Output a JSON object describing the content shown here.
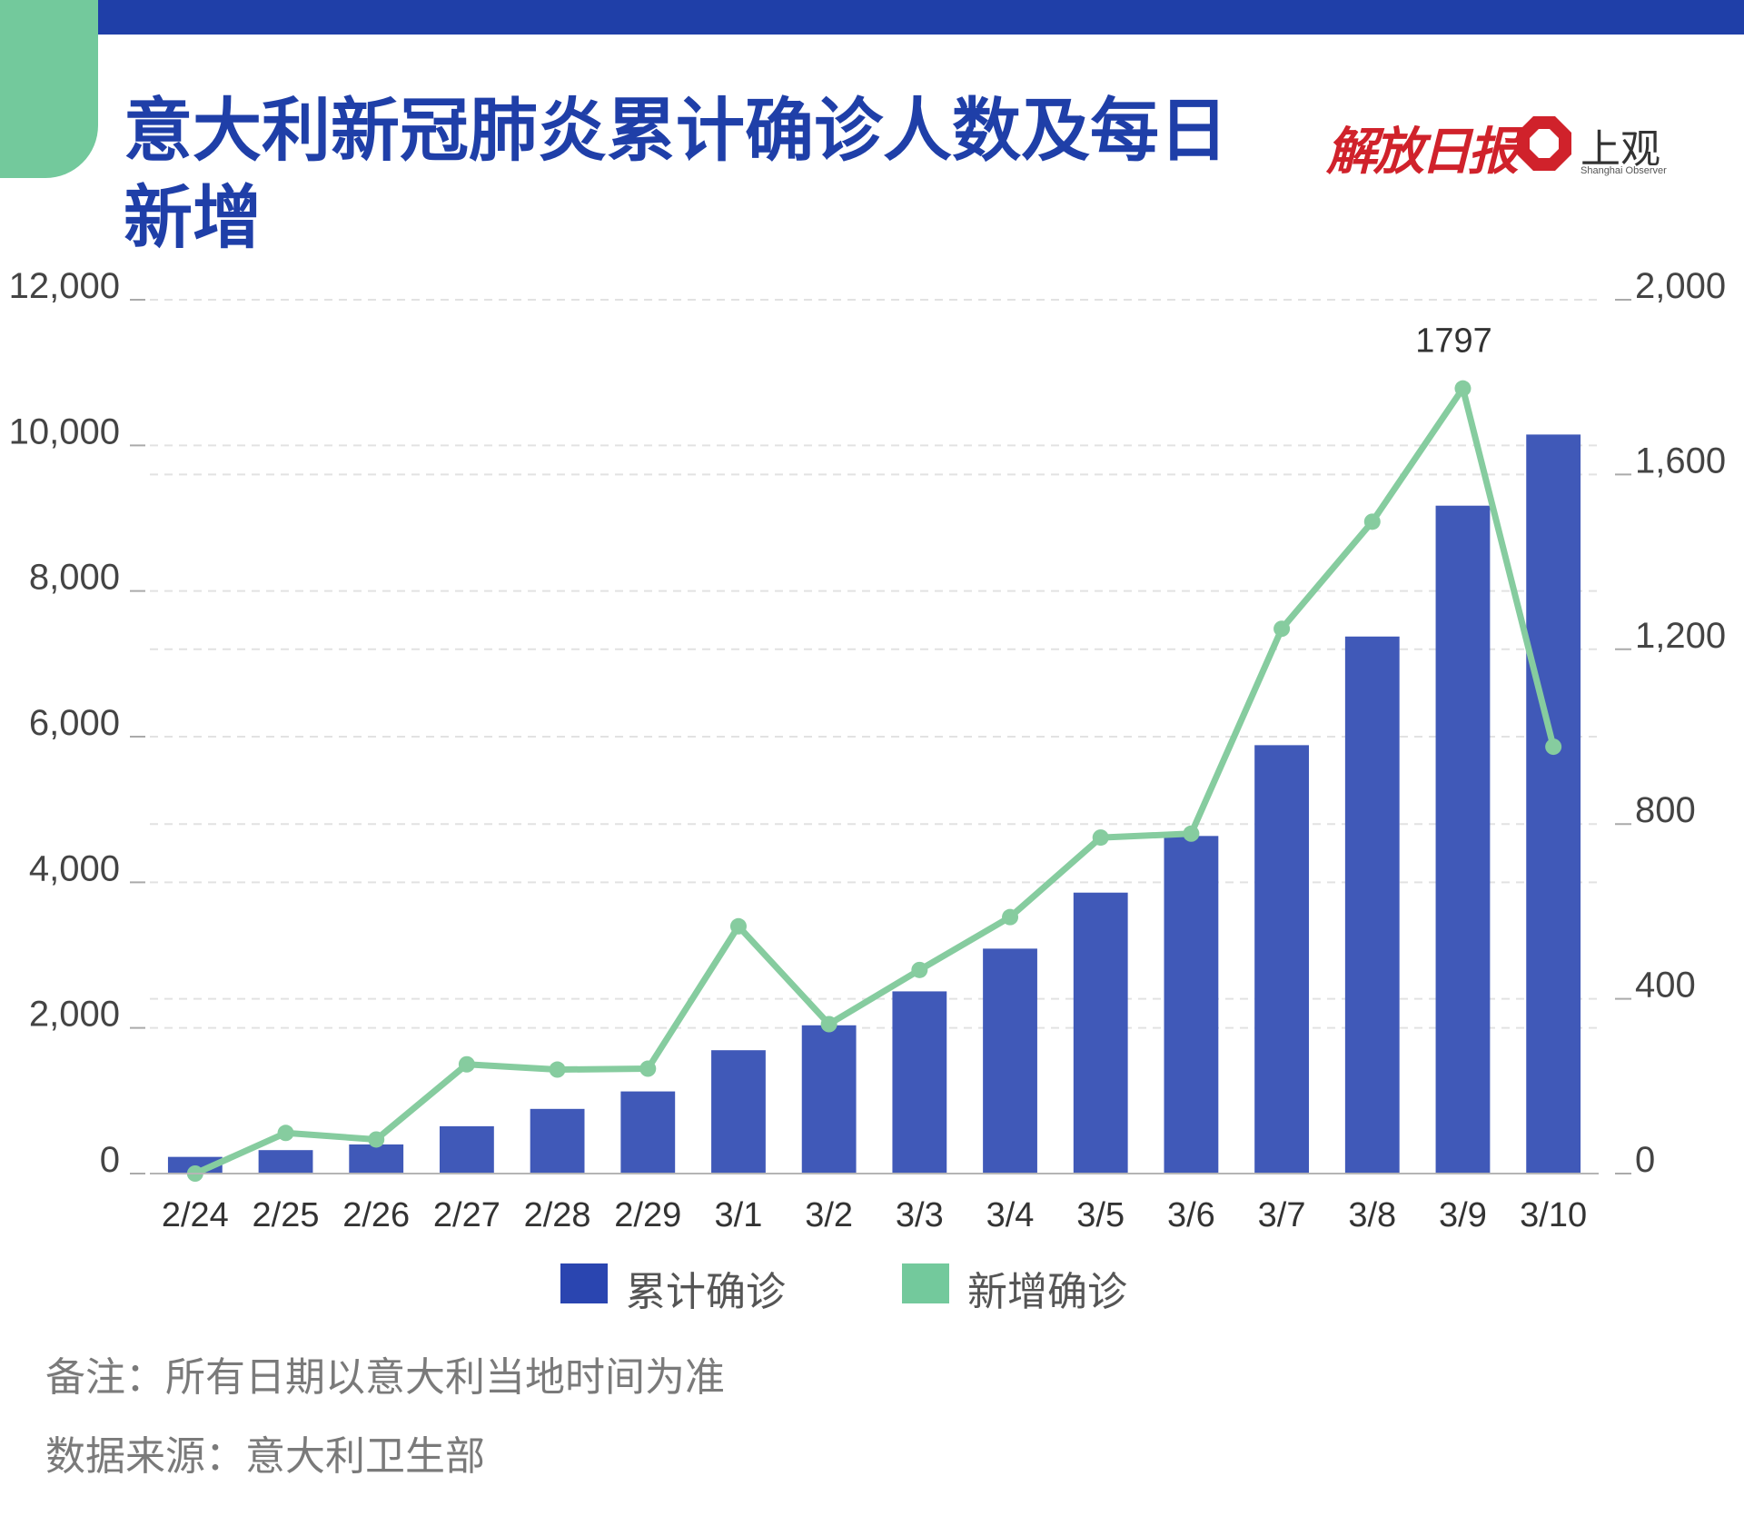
{
  "header": {
    "title": "意大利新冠肺炎累计确诊人数及每日新增",
    "logo_left_text": "解放日报",
    "logo_right_text": "上观",
    "logo_right_subtext": "Shanghai Observer"
  },
  "colors": {
    "top_bar": "#1f3fa8",
    "corner_tab": "#73c99c",
    "bars": "#4059b8",
    "line": "#86cc9f",
    "title": "#1f3fa8",
    "logo_red": "#d0222b"
  },
  "chart_data": {
    "type": "bar",
    "categories": [
      "2/24",
      "2/25",
      "2/26",
      "2/27",
      "2/28",
      "2/29",
      "3/1",
      "3/2",
      "3/3",
      "3/4",
      "3/5",
      "3/6",
      "3/7",
      "3/8",
      "3/9",
      "3/10"
    ],
    "series": [
      {
        "name": "累计确诊",
        "type": "bar",
        "axis": "left",
        "values": [
          229,
          322,
          400,
          650,
          888,
          1128,
          1694,
          2036,
          2502,
          3089,
          3858,
          4636,
          5883,
          7375,
          9172,
          10149
        ]
      },
      {
        "name": "新增确诊",
        "type": "line",
        "axis": "right",
        "values": [
          0,
          93,
          78,
          250,
          238,
          240,
          566,
          342,
          466,
          587,
          769,
          778,
          1247,
          1492,
          1797,
          977
        ]
      }
    ],
    "left_axis": {
      "min": 0,
      "max": 12000,
      "ticks": [
        0,
        2000,
        4000,
        6000,
        8000,
        10000,
        12000
      ],
      "tick_labels": [
        "0",
        "2,000",
        "4,000",
        "6,000",
        "8,000",
        "10,000",
        "12,000"
      ]
    },
    "right_axis": {
      "min": 0,
      "max": 2000,
      "ticks": [
        0,
        400,
        800,
        1200,
        1600,
        2000
      ],
      "tick_labels": [
        "0",
        "400",
        "800",
        "1,200",
        "1,600",
        "2,000"
      ]
    },
    "annotations": [
      {
        "category": "3/9",
        "series": "新增确诊",
        "label": "1797"
      }
    ],
    "grid": true,
    "legend_position": "bottom"
  },
  "legend": [
    {
      "label": "累计确诊",
      "color": "#4059b8"
    },
    {
      "label": "新增确诊",
      "color": "#73c99c"
    }
  ],
  "footer": {
    "note": "备注：所有日期以意大利当地时间为准",
    "source": "数据来源：意大利卫生部"
  }
}
